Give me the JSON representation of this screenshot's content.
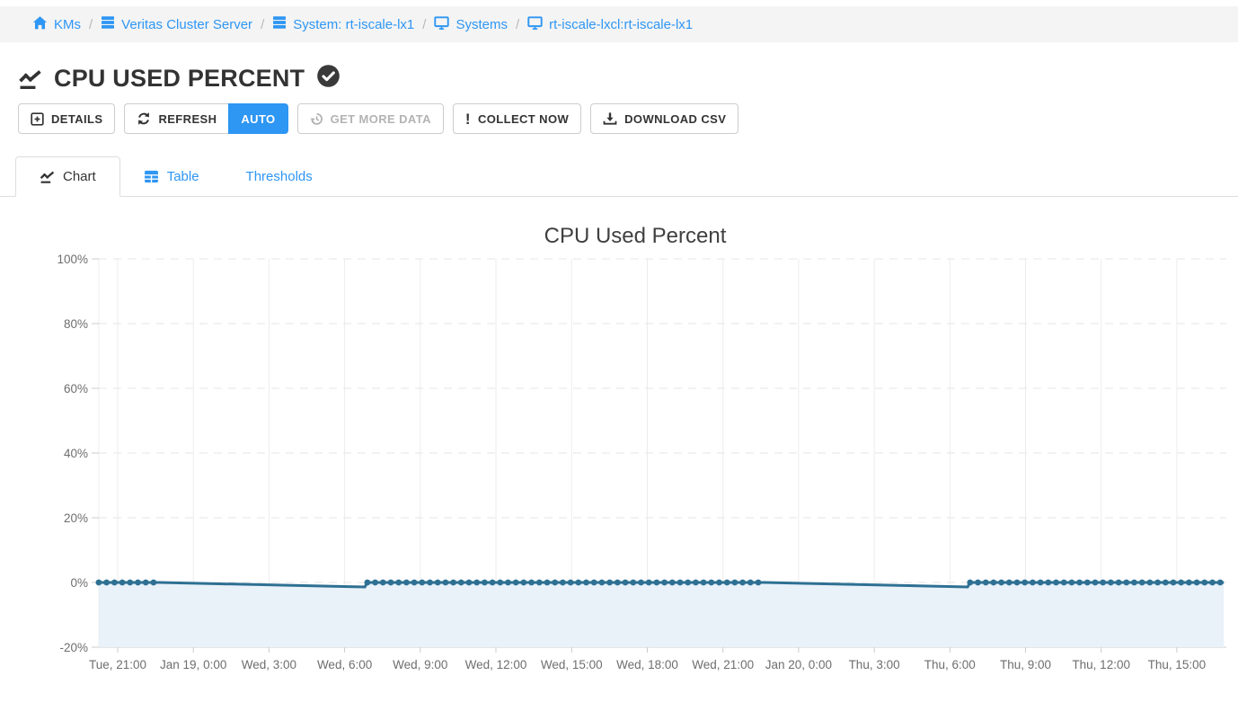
{
  "breadcrumb": {
    "separator": "/",
    "items": [
      {
        "label": "KMs",
        "icon": "home"
      },
      {
        "label": "Veritas Cluster Server",
        "icon": "server"
      },
      {
        "label": "System: rt-iscale-lx1",
        "icon": "server"
      },
      {
        "label": "Systems",
        "icon": "monitor"
      },
      {
        "label": "rt-iscale-lxcl:rt-iscale-lx1",
        "icon": "monitor"
      }
    ]
  },
  "page": {
    "title": "CPU USED PERCENT",
    "status_icon": "check-circle"
  },
  "toolbar": {
    "details_label": "DETAILS",
    "refresh_label": "REFRESH",
    "auto_label": "AUTO",
    "get_more_data_label": "GET MORE DATA",
    "collect_now_label": "COLLECT NOW",
    "download_csv_label": "DOWNLOAD CSV"
  },
  "tabs": [
    {
      "label": "Chart",
      "active": true,
      "icon": "chart-line"
    },
    {
      "label": "Table",
      "active": false,
      "icon": "table"
    },
    {
      "label": "Thresholds",
      "active": false,
      "icon": "none"
    }
  ],
  "colors": {
    "accent": "#2e96f3",
    "title_text": "#333333",
    "badge": "#3a3a3a",
    "series_line": "#2e7093",
    "series_fill": "#e9f1f9",
    "grid": "#e8e8e8",
    "axis_text": "#6e6e6e",
    "disabled_text": "#b3b3b3"
  },
  "chart_data": {
    "type": "line",
    "title": "CPU Used Percent",
    "xlabel": "",
    "ylabel": "",
    "ylim": [
      -20,
      100
    ],
    "yticks": [
      100,
      80,
      60,
      40,
      20,
      0,
      -20
    ],
    "ytick_suffix": "%",
    "x_hours_per_tick": 3,
    "xticks": [
      "Tue, 21:00",
      "Jan 19, 0:00",
      "Wed, 3:00",
      "Wed, 6:00",
      "Wed, 9:00",
      "Wed, 12:00",
      "Wed, 15:00",
      "Wed, 18:00",
      "Wed, 21:00",
      "Jan 20, 0:00",
      "Thu, 3:00",
      "Thu, 6:00",
      "Thu, 9:00",
      "Thu, 12:00",
      "Thu, 15:00"
    ],
    "x_range_hours": [
      -0.75,
      43.86
    ],
    "grid": {
      "vertical": "solid",
      "horizontal": "dashed"
    },
    "legend": false,
    "series": [
      {
        "name": "CPU Used Percent",
        "segments": [
          {
            "style": "markers",
            "t": [
              -0.75,
              1.65
            ],
            "value": 0,
            "marker_interval_hours": 0.31
          },
          {
            "style": "line",
            "t": [
              1.65,
              9.8
            ],
            "from": 0,
            "to": -1.4
          },
          {
            "style": "markers",
            "t": [
              9.9,
              25.65
            ],
            "value": 0,
            "marker_interval_hours": 0.31
          },
          {
            "style": "line",
            "t": [
              25.65,
              33.7
            ],
            "from": 0,
            "to": -1.4
          },
          {
            "style": "markers",
            "t": [
              33.8,
              43.86
            ],
            "value": 0,
            "marker_interval_hours": 0.31
          }
        ]
      }
    ]
  }
}
